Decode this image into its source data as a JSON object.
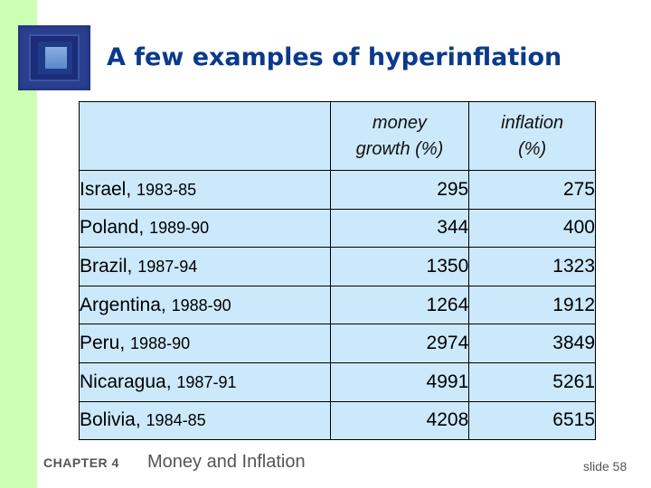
{
  "slide": {
    "title": "A few examples of hyperinflation",
    "sidebar_color": "#ccffb4",
    "title_color": "#0a3a8c",
    "table_bg_color": "#cce9fc",
    "logo_icon": "picture-frame-icon"
  },
  "table": {
    "headers": [
      "",
      "money growth (%)",
      "inflation (%)"
    ],
    "header_lines": {
      "money_growth": [
        "money",
        "growth (%)"
      ],
      "inflation": [
        "inflation",
        "(%)"
      ]
    },
    "rows": [
      {
        "country": "Israel,",
        "years": "1983-85",
        "money_growth": "295",
        "inflation": "275"
      },
      {
        "country": "Poland,",
        "years": "1989-90",
        "money_growth": "344",
        "inflation": "400"
      },
      {
        "country": "Brazil,",
        "years": "1987-94",
        "money_growth": "1350",
        "inflation": "1323"
      },
      {
        "country": "Argentina,",
        "years": "1988-90",
        "money_growth": "1264",
        "inflation": "1912"
      },
      {
        "country": "Peru,",
        "years": "1988-90",
        "money_growth": "2974",
        "inflation": "3849"
      },
      {
        "country": "Nicaragua,",
        "years": "1987-91",
        "money_growth": "4991",
        "inflation": "5261"
      },
      {
        "country": "Bolivia,",
        "years": "1984-85",
        "money_growth": "4208",
        "inflation": "6515"
      }
    ]
  },
  "footer": {
    "chapter": "CHAPTER 4",
    "chapter_title": "Money and Inflation",
    "slide_number": "slide 58"
  }
}
